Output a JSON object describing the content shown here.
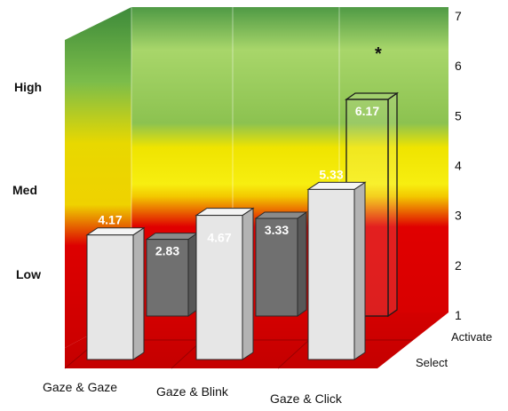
{
  "chart_data": {
    "type": "bar",
    "title": "",
    "categories": [
      "Gaze & Gaze",
      "Gaze & Blink",
      "Gaze & Click"
    ],
    "depth_categories": [
      "Select",
      "Activate"
    ],
    "series": [
      {
        "values": [
          4.17,
          4.67,
          5.33
        ],
        "color": "#e6e6e6"
      },
      {
        "values": [
          2.83,
          3.33,
          6.17
        ],
        "color": "#707070"
      }
    ],
    "y_ticks": [
      "1",
      "2",
      "3",
      "4",
      "5",
      "6",
      "7"
    ],
    "ylim": [
      1,
      7
    ],
    "bands": [
      {
        "label": "Low",
        "color": "#e00000"
      },
      {
        "label": "Med",
        "color": "#f2e600"
      },
      {
        "label": "High",
        "color": "#7cc24a"
      }
    ],
    "annotations": [
      {
        "text": "*"
      }
    ],
    "grid": true
  }
}
